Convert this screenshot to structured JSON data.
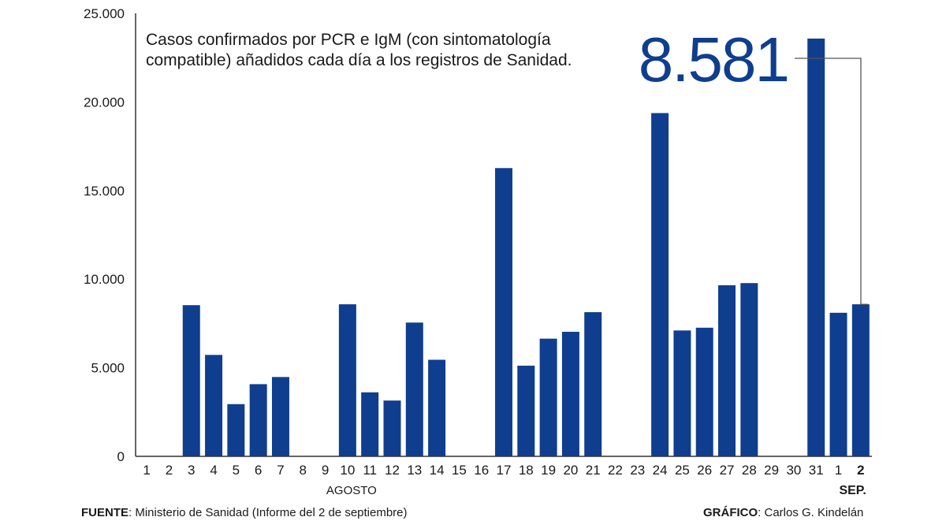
{
  "chart_data": {
    "type": "bar",
    "title_lines": [
      "Casos confirmados por PCR e IgM (con sintomatología",
      "compatible) añadidos cada día a los registros de Sanidad."
    ],
    "highlight_value": "8.581",
    "categories": [
      "1",
      "2",
      "3",
      "4",
      "5",
      "6",
      "7",
      "8",
      "9",
      "10",
      "11",
      "12",
      "13",
      "14",
      "15",
      "16",
      "17",
      "18",
      "19",
      "20",
      "21",
      "22",
      "23",
      "24",
      "25",
      "26",
      "27",
      "28",
      "29",
      "30",
      "31",
      "1",
      "2"
    ],
    "values": [
      0,
      0,
      8532,
      5724,
      2946,
      4074,
      4477,
      0,
      0,
      8581,
      3613,
      3149,
      7550,
      5450,
      0,
      0,
      16269,
      5117,
      6642,
      7030,
      8137,
      0,
      0,
      19374,
      7104,
      7260,
      9658,
      9778,
      0,
      0,
      23580,
      8103,
      8581
    ],
    "month_labels": [
      {
        "text": "AGOSTO",
        "category_index": 9
      },
      {
        "text": "SEP.",
        "category_index": 32
      }
    ],
    "highlight_index": 32,
    "y_ticks": [
      "0",
      "5.000",
      "10.000",
      "15.000",
      "20.000",
      "25.000"
    ],
    "y_tick_values": [
      0,
      5000,
      10000,
      15000,
      20000,
      25000
    ],
    "ylim": [
      0,
      25000
    ],
    "grid": false,
    "bar_color": "#0f3e8f"
  },
  "footer": {
    "source_label": "FUENTE",
    "source_text": ": Ministerio de Sanidad (Informe del 2 de septiembre)",
    "credit_label": "GRÁFICO",
    "credit_text": ": Carlos G. Kindelán"
  }
}
